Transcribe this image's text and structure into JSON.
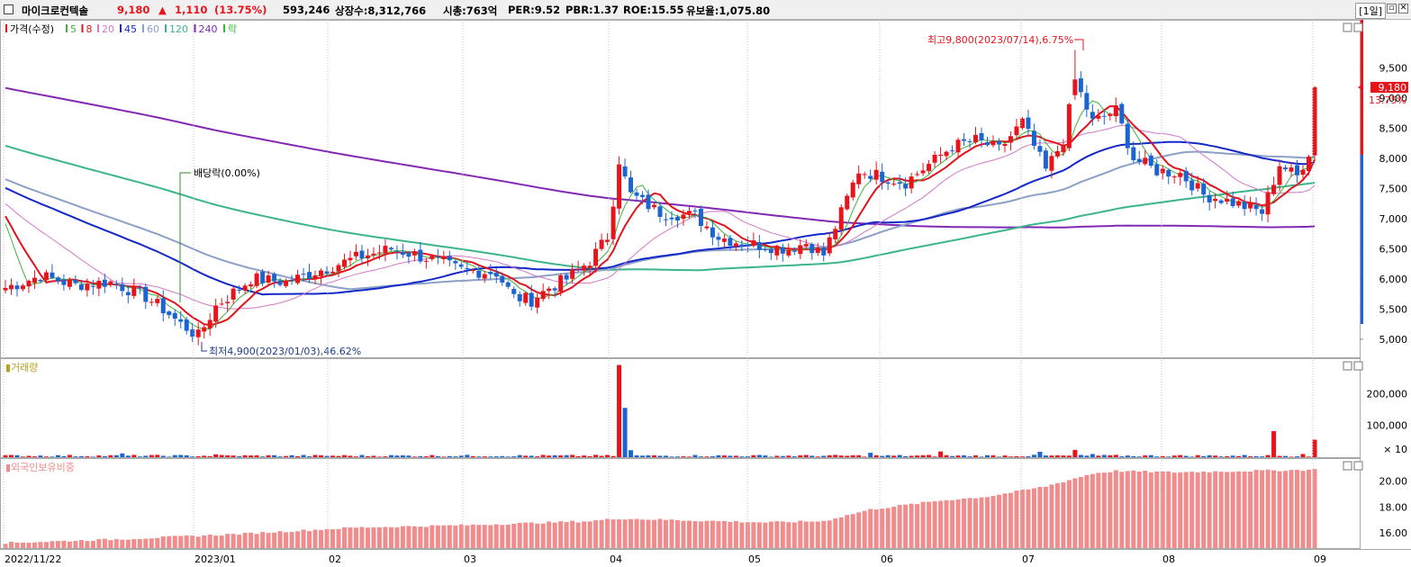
{
  "header": {
    "name": "마이크로컨텍솔",
    "price": "9,180",
    "change_arrow": "▲",
    "change": "1,110",
    "change_pct": "(13.75%)",
    "volume": "593,246",
    "shares": "상장수:8,312,766",
    "mcap": "시총:763억",
    "per": "PER:9.52",
    "pbr": "PBR:1.37",
    "roe": "ROE:15.55",
    "float": "유보율:1,075.80",
    "period": "[1일]"
  },
  "colors": {
    "up": "#e8141c",
    "down": "#1c64d2",
    "ma5": "#3cb43c",
    "ma8": "#e0141c",
    "ma20": "#d278c8",
    "ma45": "#1428c8",
    "ma60": "#8ca0c8",
    "ma120": "#3cb48c",
    "ma240": "#8228b4",
    "foreign": "#f08c8c"
  },
  "chart_data": [
    {
      "type": "candlestick",
      "legend": [
        "가격(수정)",
        "5",
        "8",
        "20",
        "45",
        "60",
        "120",
        "240",
        "락"
      ],
      "ylim": [
        4700,
        10300
      ],
      "yticks": [
        "9,500",
        "9,000",
        "8,500",
        "8,000",
        "7,500",
        "7,000",
        "6,500",
        "6,000",
        "5,500",
        "5,000"
      ],
      "ytick_values": [
        9500,
        9000,
        8500,
        8000,
        7500,
        7000,
        6500,
        6000,
        5500,
        5000
      ],
      "xticks": [
        "2022/11/22",
        "2023/01",
        "02",
        "03",
        "04",
        "05",
        "06",
        "07",
        "08",
        "09"
      ],
      "annotations": {
        "high": "최고9,800(2023/07/14),6.75%",
        "low": "최저4,900(2023/01/03),46.62%",
        "dividend": "배당락(0.00%)"
      },
      "last_price": "9,180",
      "last_pct": "13.75%",
      "anchors": [
        [
          0,
          5850
        ],
        [
          6,
          6050
        ],
        [
          12,
          5900
        ],
        [
          18,
          5950
        ],
        [
          24,
          5700
        ],
        [
          27,
          5500
        ],
        [
          30,
          5250
        ],
        [
          33,
          5050
        ],
        [
          36,
          5550
        ],
        [
          42,
          6000
        ],
        [
          48,
          5950
        ],
        [
          54,
          6150
        ],
        [
          60,
          6350
        ],
        [
          66,
          6500
        ],
        [
          72,
          6350
        ],
        [
          78,
          6150
        ],
        [
          84,
          6100
        ],
        [
          87,
          5700
        ],
        [
          90,
          5650
        ],
        [
          93,
          5850
        ],
        [
          96,
          6000
        ],
        [
          100,
          6300
        ],
        [
          103,
          6700
        ],
        [
          105,
          7900
        ],
        [
          107,
          7400
        ],
        [
          112,
          7100
        ],
        [
          118,
          7050
        ],
        [
          122,
          6700
        ],
        [
          126,
          6600
        ],
        [
          130,
          6550
        ],
        [
          134,
          6500
        ],
        [
          137,
          6600
        ],
        [
          140,
          6400
        ],
        [
          143,
          7100
        ],
        [
          146,
          7800
        ],
        [
          150,
          7700
        ],
        [
          154,
          7600
        ],
        [
          158,
          7900
        ],
        [
          162,
          8200
        ],
        [
          166,
          8300
        ],
        [
          170,
          8150
        ],
        [
          174,
          8600
        ],
        [
          178,
          7800
        ],
        [
          181,
          8300
        ],
        [
          183,
          9300
        ],
        [
          186,
          8600
        ],
        [
          190,
          8800
        ],
        [
          193,
          8000
        ],
        [
          197,
          7800
        ],
        [
          201,
          7750
        ],
        [
          205,
          7400
        ],
        [
          209,
          7300
        ],
        [
          212,
          7200
        ],
        [
          215,
          7100
        ],
        [
          218,
          7900
        ],
        [
          221,
          7700
        ],
        [
          223,
          8100
        ],
        [
          224,
          9180
        ]
      ],
      "ma_periods": [
        5,
        8,
        20,
        45,
        60,
        120,
        240
      ]
    },
    {
      "type": "bar",
      "title": "거래량",
      "yticks": [
        "200,000",
        "100,000"
      ],
      "ytick_values": [
        200000,
        100000
      ],
      "unit": "× 10",
      "ylim": [
        0,
        300000
      ],
      "spikes": [
        [
          20,
          12000
        ],
        [
          36,
          9000
        ],
        [
          105,
          290000
        ],
        [
          106,
          155000
        ],
        [
          107,
          22000
        ],
        [
          148,
          14000
        ],
        [
          160,
          18000
        ],
        [
          177,
          17000
        ],
        [
          183,
          23000
        ],
        [
          186,
          10000
        ],
        [
          217,
          82000
        ],
        [
          222,
          10000
        ],
        [
          224,
          55000
        ]
      ],
      "base": 5000
    },
    {
      "type": "bar",
      "title": "외국인보유비중",
      "yticks": [
        "20.00",
        "18.00",
        "16.00"
      ],
      "ytick_values": [
        20,
        18,
        16
      ],
      "ylim": [
        14.8,
        21.8
      ],
      "anchors": [
        [
          0,
          15.2
        ],
        [
          20,
          15.5
        ],
        [
          40,
          15.9
        ],
        [
          60,
          16.4
        ],
        [
          80,
          16.6
        ],
        [
          100,
          16.9
        ],
        [
          105,
          17.1
        ],
        [
          130,
          16.8
        ],
        [
          140,
          16.9
        ],
        [
          148,
          17.8
        ],
        [
          160,
          18.5
        ],
        [
          168,
          18.8
        ],
        [
          178,
          19.6
        ],
        [
          186,
          20.6
        ],
        [
          190,
          20.8
        ],
        [
          200,
          20.7
        ],
        [
          224,
          20.9
        ]
      ]
    }
  ]
}
